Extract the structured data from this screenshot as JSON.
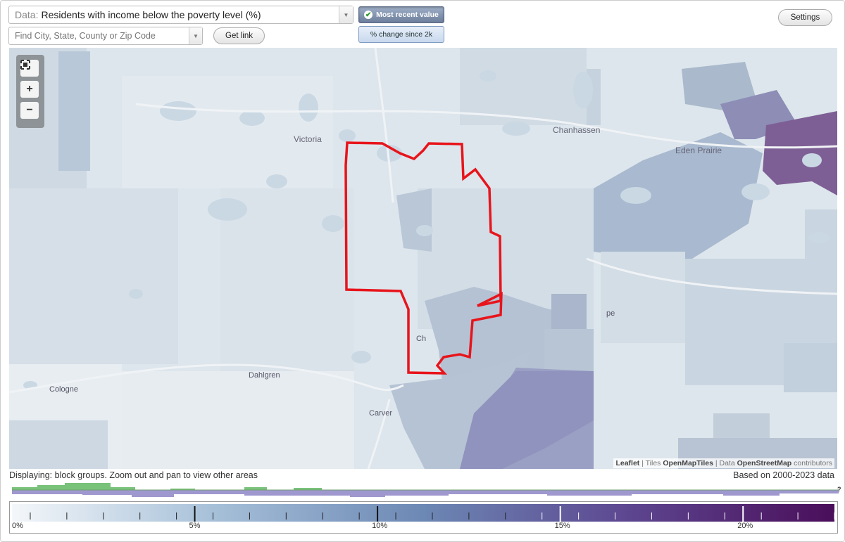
{
  "controls": {
    "data_prefix": "Data:",
    "data_value": "Residents with income below the poverty level (%)",
    "search_placeholder": "Find City, State, County or Zip Code",
    "get_link_label": "Get link",
    "settings_label": "Settings",
    "toggle_recent_label": "Most recent value",
    "toggle_change_label": "% change since 2k",
    "dropdown_icon": "triangle-down"
  },
  "map": {
    "place_labels": {
      "victoria": "Victoria",
      "chanhassen": "Chanhassen",
      "eden_prairie": "Eden Prairie",
      "dahlgren": "Dahlgren",
      "cologne": "Cologne",
      "carver": "Carver",
      "ch_partial": "Ch",
      "hope_partial": "pe"
    },
    "zoom": {
      "fit_icon": "fit-bounds-icon",
      "in_label": "+",
      "out_label": "−"
    },
    "attribution": {
      "leaflet": "Leaflet",
      "sep": " | ",
      "tiles_prefix": "Tiles ",
      "tiles_source": "OpenMapTiles",
      "data_prefix": "Data ",
      "data_source": "OpenStreetMap",
      "contributors": " contributors"
    },
    "highlight_color": "#e8141b"
  },
  "footer": {
    "display_note": "Displaying: block groups. Zoom out and pan to view other areas",
    "based_note": "Based on 2000-2023 data",
    "unknown_mark": "?"
  },
  "legend": {
    "tick_labels": [
      "0%",
      "5%",
      "10%",
      "15%",
      "20%"
    ],
    "range_min": 0,
    "range_max": 22.5,
    "color_stops": [
      "#f4f7fa",
      "#a5bfd8",
      "#6c88b4",
      "#5d4690",
      "#4a0e5a"
    ],
    "histogram_colors": {
      "top": "#79c27a",
      "bottom": "#9f98cf"
    }
  }
}
